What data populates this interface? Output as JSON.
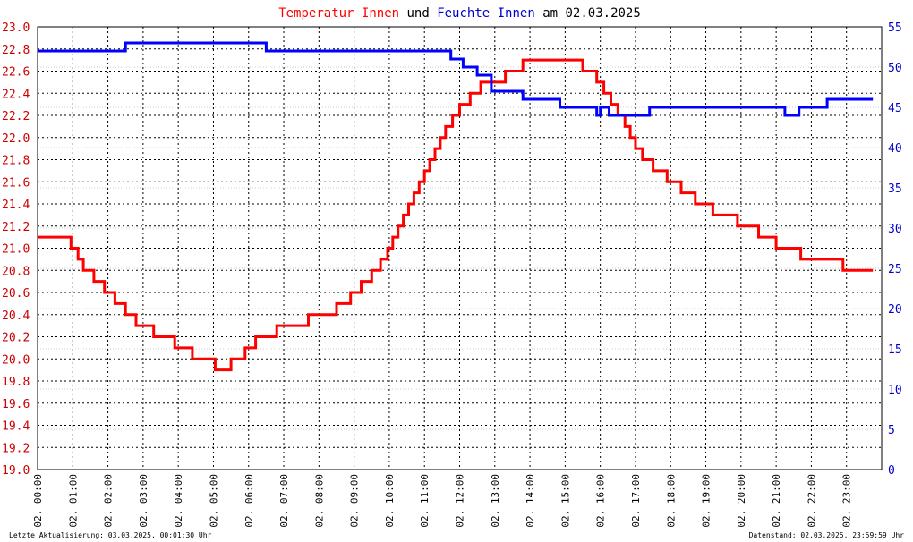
{
  "chart_data": {
    "type": "line",
    "title": {
      "parts": [
        {
          "text": "Temperatur Innen",
          "color": "#ff0000"
        },
        {
          "text": " und ",
          "color": "#000000"
        },
        {
          "text": "Feuchte Innen",
          "color": "#0000cc"
        },
        {
          "text": " am 02.03.2025",
          "color": "#000000"
        }
      ]
    },
    "x_axis": {
      "unit": "hours",
      "range": [
        0,
        24
      ],
      "ticks": [
        {
          "v": 0,
          "label": "02. 00:00"
        },
        {
          "v": 1,
          "label": "02. 01:00"
        },
        {
          "v": 2,
          "label": "02. 02:00"
        },
        {
          "v": 3,
          "label": "02. 03:00"
        },
        {
          "v": 4,
          "label": "02. 04:00"
        },
        {
          "v": 5,
          "label": "02. 05:00"
        },
        {
          "v": 6,
          "label": "02. 06:00"
        },
        {
          "v": 7,
          "label": "02. 07:00"
        },
        {
          "v": 8,
          "label": "02. 08:00"
        },
        {
          "v": 9,
          "label": "02. 09:00"
        },
        {
          "v": 10,
          "label": "02. 10:00"
        },
        {
          "v": 11,
          "label": "02. 11:00"
        },
        {
          "v": 12,
          "label": "02. 12:00"
        },
        {
          "v": 13,
          "label": "02. 13:00"
        },
        {
          "v": 14,
          "label": "02. 14:00"
        },
        {
          "v": 15,
          "label": "02. 15:00"
        },
        {
          "v": 16,
          "label": "02. 16:00"
        },
        {
          "v": 17,
          "label": "02. 17:00"
        },
        {
          "v": 18,
          "label": "02. 18:00"
        },
        {
          "v": 19,
          "label": "02. 19:00"
        },
        {
          "v": 20,
          "label": "02. 20:00"
        },
        {
          "v": 21,
          "label": "02. 21:00"
        },
        {
          "v": 22,
          "label": "02. 22:00"
        },
        {
          "v": 23,
          "label": "02. 23:00"
        }
      ]
    },
    "y_left": {
      "range": [
        19.0,
        23.0
      ],
      "color": "#cc0000",
      "ticks": [
        "19.0",
        "19.2",
        "19.4",
        "19.6",
        "19.8",
        "20.0",
        "20.2",
        "20.4",
        "20.6",
        "20.8",
        "21.0",
        "21.2",
        "21.4",
        "21.6",
        "21.8",
        "22.0",
        "22.2",
        "22.4",
        "22.6",
        "22.8",
        "23.0"
      ]
    },
    "y_right": {
      "range": [
        0,
        55
      ],
      "color": "#0000cc",
      "ticks": [
        "0",
        "5",
        "10",
        "15",
        "20",
        "25",
        "30",
        "35",
        "40",
        "45",
        "50",
        "55"
      ]
    },
    "grid": true,
    "series": [
      {
        "name": "Temperatur Innen",
        "axis": "left",
        "color": "#ff0000",
        "points": [
          [
            0.0,
            21.1
          ],
          [
            0.95,
            21.1
          ],
          [
            0.95,
            21.0
          ],
          [
            1.15,
            21.0
          ],
          [
            1.15,
            20.9
          ],
          [
            1.3,
            20.9
          ],
          [
            1.3,
            20.8
          ],
          [
            1.6,
            20.8
          ],
          [
            1.6,
            20.7
          ],
          [
            1.9,
            20.7
          ],
          [
            1.9,
            20.6
          ],
          [
            2.2,
            20.6
          ],
          [
            2.2,
            20.5
          ],
          [
            2.5,
            20.5
          ],
          [
            2.5,
            20.4
          ],
          [
            2.8,
            20.4
          ],
          [
            2.8,
            20.3
          ],
          [
            3.3,
            20.3
          ],
          [
            3.3,
            20.2
          ],
          [
            3.9,
            20.2
          ],
          [
            3.9,
            20.1
          ],
          [
            4.4,
            20.1
          ],
          [
            4.4,
            20.0
          ],
          [
            5.05,
            20.0
          ],
          [
            5.05,
            19.9
          ],
          [
            5.5,
            19.9
          ],
          [
            5.5,
            20.0
          ],
          [
            5.9,
            20.0
          ],
          [
            5.9,
            20.1
          ],
          [
            6.2,
            20.1
          ],
          [
            6.2,
            20.2
          ],
          [
            6.8,
            20.2
          ],
          [
            6.8,
            20.3
          ],
          [
            7.7,
            20.3
          ],
          [
            7.7,
            20.4
          ],
          [
            8.5,
            20.4
          ],
          [
            8.5,
            20.5
          ],
          [
            8.9,
            20.5
          ],
          [
            8.9,
            20.6
          ],
          [
            9.2,
            20.6
          ],
          [
            9.2,
            20.7
          ],
          [
            9.5,
            20.7
          ],
          [
            9.5,
            20.8
          ],
          [
            9.75,
            20.8
          ],
          [
            9.75,
            20.9
          ],
          [
            9.95,
            20.9
          ],
          [
            9.95,
            21.0
          ],
          [
            10.1,
            21.0
          ],
          [
            10.1,
            21.1
          ],
          [
            10.25,
            21.1
          ],
          [
            10.25,
            21.2
          ],
          [
            10.4,
            21.2
          ],
          [
            10.4,
            21.3
          ],
          [
            10.55,
            21.3
          ],
          [
            10.55,
            21.4
          ],
          [
            10.7,
            21.4
          ],
          [
            10.7,
            21.5
          ],
          [
            10.85,
            21.5
          ],
          [
            10.85,
            21.6
          ],
          [
            11.0,
            21.6
          ],
          [
            11.0,
            21.7
          ],
          [
            11.15,
            21.7
          ],
          [
            11.15,
            21.8
          ],
          [
            11.3,
            21.8
          ],
          [
            11.3,
            21.9
          ],
          [
            11.45,
            21.9
          ],
          [
            11.45,
            22.0
          ],
          [
            11.6,
            22.0
          ],
          [
            11.6,
            22.1
          ],
          [
            11.8,
            22.1
          ],
          [
            11.8,
            22.2
          ],
          [
            12.0,
            22.2
          ],
          [
            12.0,
            22.3
          ],
          [
            12.3,
            22.3
          ],
          [
            12.3,
            22.4
          ],
          [
            12.6,
            22.4
          ],
          [
            12.6,
            22.5
          ],
          [
            13.3,
            22.5
          ],
          [
            13.3,
            22.6
          ],
          [
            13.8,
            22.6
          ],
          [
            13.8,
            22.7
          ],
          [
            15.5,
            22.7
          ],
          [
            15.5,
            22.6
          ],
          [
            15.9,
            22.6
          ],
          [
            15.9,
            22.5
          ],
          [
            16.1,
            22.5
          ],
          [
            16.1,
            22.4
          ],
          [
            16.3,
            22.4
          ],
          [
            16.3,
            22.3
          ],
          [
            16.5,
            22.3
          ],
          [
            16.5,
            22.2
          ],
          [
            16.7,
            22.2
          ],
          [
            16.7,
            22.1
          ],
          [
            16.85,
            22.1
          ],
          [
            16.85,
            22.0
          ],
          [
            17.0,
            22.0
          ],
          [
            17.0,
            21.9
          ],
          [
            17.2,
            21.9
          ],
          [
            17.2,
            21.8
          ],
          [
            17.5,
            21.8
          ],
          [
            17.5,
            21.7
          ],
          [
            17.9,
            21.7
          ],
          [
            17.9,
            21.6
          ],
          [
            18.3,
            21.6
          ],
          [
            18.3,
            21.5
          ],
          [
            18.7,
            21.5
          ],
          [
            18.7,
            21.4
          ],
          [
            19.2,
            21.4
          ],
          [
            19.2,
            21.3
          ],
          [
            19.9,
            21.3
          ],
          [
            19.9,
            21.2
          ],
          [
            20.5,
            21.2
          ],
          [
            20.5,
            21.1
          ],
          [
            21.0,
            21.1
          ],
          [
            21.0,
            21.0
          ],
          [
            21.7,
            21.0
          ],
          [
            21.7,
            20.9
          ],
          [
            22.9,
            20.9
          ],
          [
            22.9,
            20.8
          ],
          [
            23.75,
            20.8
          ]
        ]
      },
      {
        "name": "Feuchte Innen",
        "axis": "right",
        "color": "#0000ff",
        "points": [
          [
            0.0,
            52
          ],
          [
            2.5,
            52
          ],
          [
            2.5,
            53
          ],
          [
            6.5,
            53
          ],
          [
            6.5,
            52
          ],
          [
            11.75,
            52
          ],
          [
            11.75,
            51
          ],
          [
            12.1,
            51
          ],
          [
            12.1,
            50
          ],
          [
            12.5,
            50
          ],
          [
            12.5,
            49
          ],
          [
            12.9,
            49
          ],
          [
            12.9,
            47
          ],
          [
            13.8,
            47
          ],
          [
            13.8,
            46
          ],
          [
            14.85,
            46
          ],
          [
            14.85,
            45
          ],
          [
            15.9,
            45
          ],
          [
            15.9,
            44
          ],
          [
            16.0,
            44
          ],
          [
            16.0,
            45
          ],
          [
            16.25,
            45
          ],
          [
            16.25,
            44
          ],
          [
            17.4,
            44
          ],
          [
            17.4,
            45
          ],
          [
            21.25,
            45
          ],
          [
            21.25,
            44
          ],
          [
            21.65,
            44
          ],
          [
            21.65,
            45
          ],
          [
            22.45,
            45
          ],
          [
            22.45,
            46
          ],
          [
            23.75,
            46
          ]
        ]
      }
    ]
  },
  "footer": {
    "left": "Letzte Aktualisierung: 03.03.2025, 00:01:30 Uhr",
    "right": "Datenstand: 02.03.2025, 23:59:59 Uhr"
  }
}
